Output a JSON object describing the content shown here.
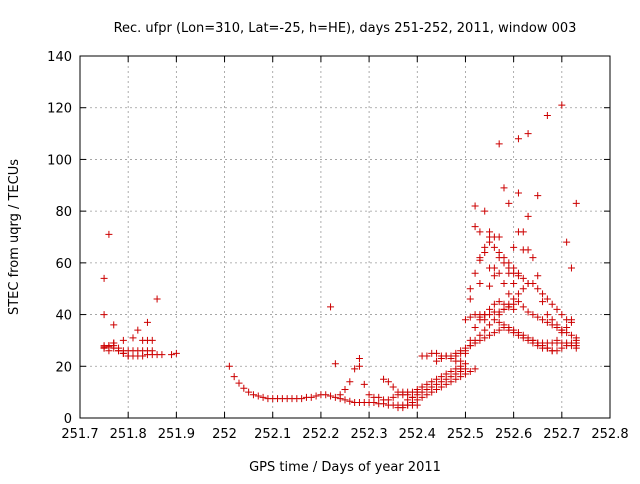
{
  "chart_data": {
    "type": "scatter",
    "title": "Rec. ufpr (Lon=310, Lat=-25, h=HE), days 251-252, 2011, window 003",
    "xlabel": "GPS time / Days of year 2011",
    "ylabel": "STEC from uqrg / TECUs",
    "xlim": [
      251.7,
      252.8
    ],
    "ylim": [
      0,
      140
    ],
    "xticks": [
      251.7,
      251.8,
      251.9,
      252.0,
      252.1,
      252.2,
      252.3,
      252.4,
      252.5,
      252.6,
      252.7,
      252.8
    ],
    "xtick_labels": [
      "251.7",
      "251.8",
      "251.9",
      "252",
      "252.1",
      "252.2",
      "252.3",
      "252.4",
      "252.5",
      "252.6",
      "252.7",
      "252.8"
    ],
    "yticks": [
      0,
      20,
      40,
      60,
      80,
      100,
      120,
      140
    ],
    "ytick_labels": [
      "0",
      "20",
      "40",
      "60",
      "80",
      "100",
      "120",
      "140"
    ],
    "grid": true,
    "marker": "+",
    "marker_color": "#cc0000",
    "x": [
      251.75,
      251.75,
      251.75,
      251.76,
      251.76,
      251.76,
      251.77,
      251.77,
      251.78,
      251.78,
      251.79,
      251.79,
      251.8,
      251.8,
      251.81,
      251.82,
      251.83,
      251.84,
      251.85,
      251.86,
      251.87,
      251.89,
      251.9,
      251.76,
      251.77,
      251.78,
      251.79,
      251.8,
      251.81,
      251.82,
      251.83,
      251.84,
      251.85,
      251.75,
      251.77,
      251.79,
      251.81,
      251.83,
      251.84,
      251.85,
      251.75,
      251.75,
      251.76,
      251.77,
      251.82,
      251.84,
      251.86,
      252.01,
      252.02,
      252.03,
      252.04,
      252.05,
      252.06,
      252.07,
      252.08,
      252.09,
      252.1,
      252.11,
      252.12,
      252.13,
      252.14,
      252.15,
      252.16,
      252.17,
      252.18,
      252.19,
      252.2,
      252.21,
      252.22,
      252.23,
      252.24,
      252.25,
      252.26,
      252.27,
      252.28,
      252.29,
      252.3,
      252.31,
      252.32,
      252.33,
      252.34,
      252.35,
      252.36,
      252.37,
      252.38,
      252.39,
      252.4,
      252.22,
      252.23,
      252.24,
      252.25,
      252.26,
      252.27,
      252.28,
      252.28,
      252.29,
      252.3,
      252.31,
      252.32,
      252.33,
      252.34,
      252.35,
      252.36,
      252.37,
      252.38,
      252.39,
      252.4,
      252.41,
      252.33,
      252.34,
      252.35,
      252.36,
      252.37,
      252.38,
      252.39,
      252.4,
      252.41,
      252.42,
      252.43,
      252.44,
      252.45,
      252.46,
      252.47,
      252.48,
      252.49,
      252.5,
      252.36,
      252.37,
      252.38,
      252.39,
      252.4,
      252.41,
      252.42,
      252.43,
      252.44,
      252.45,
      252.46,
      252.47,
      252.48,
      252.49,
      252.5,
      252.51,
      252.52,
      252.38,
      252.39,
      252.4,
      252.41,
      252.42,
      252.43,
      252.44,
      252.45,
      252.46,
      252.47,
      252.48,
      252.49,
      252.5,
      252.41,
      252.42,
      252.43,
      252.44,
      252.45,
      252.46,
      252.47,
      252.48,
      252.49,
      252.44,
      252.45,
      252.46,
      252.47,
      252.48,
      252.49,
      252.5,
      252.51,
      252.52,
      252.53,
      252.54,
      252.55,
      252.56,
      252.57,
      252.58,
      252.59,
      252.6,
      252.61,
      252.62,
      252.63,
      252.64,
      252.65,
      252.66,
      252.67,
      252.68,
      252.69,
      252.7,
      252.71,
      252.72,
      252.73,
      252.5,
      252.51,
      252.52,
      252.53,
      252.54,
      252.55,
      252.56,
      252.57,
      252.58,
      252.59,
      252.6,
      252.61,
      252.62,
      252.63,
      252.64,
      252.65,
      252.66,
      252.67,
      252.68,
      252.69,
      252.7,
      252.71,
      252.72,
      252.73,
      252.49,
      252.5,
      252.51,
      252.52,
      252.53,
      252.54,
      252.55,
      252.56,
      252.57,
      252.58,
      252.59,
      252.6,
      252.51,
      252.52,
      252.53,
      252.54,
      252.55,
      252.56,
      252.57,
      252.58,
      252.59,
      252.6,
      252.61,
      252.52,
      252.53,
      252.54,
      252.55,
      252.56,
      252.57,
      252.58,
      252.59,
      252.6,
      252.61,
      252.62,
      252.63,
      252.55,
      252.56,
      252.57,
      252.58,
      252.59,
      252.6,
      252.61,
      252.62,
      252.63,
      252.64,
      252.65,
      252.66,
      252.67,
      252.68,
      252.69,
      252.7,
      252.51,
      252.53,
      252.54,
      252.55,
      252.56,
      252.57,
      252.58,
      252.59,
      252.6,
      252.61,
      252.62,
      252.63,
      252.64,
      252.65,
      252.66,
      252.67,
      252.68,
      252.69,
      252.7,
      252.71,
      252.72,
      252.73,
      252.48,
      252.49,
      252.5,
      252.51,
      252.52,
      252.53,
      252.54,
      252.55,
      252.56,
      252.57,
      252.58,
      252.59,
      252.6,
      252.61,
      252.62,
      252.63,
      252.64,
      252.65,
      252.66,
      252.67,
      252.68,
      252.69,
      252.7,
      252.71,
      252.72,
      252.73,
      252.53,
      252.54,
      252.57,
      252.58,
      252.59,
      252.6,
      252.61,
      252.62,
      252.63,
      252.64,
      252.65,
      252.66,
      252.67,
      252.68,
      252.69,
      252.7,
      252.71,
      252.72,
      252.73,
      252.52,
      252.53,
      252.55,
      252.57,
      252.59,
      252.61,
      252.63,
      252.65,
      252.67,
      252.7,
      252.71,
      252.72,
      252.73
    ],
    "y": [
      27,
      27,
      27.5,
      28,
      27.5,
      28,
      29,
      28,
      27,
      26,
      25,
      25,
      24,
      24,
      24,
      24,
      24,
      24.5,
      24.5,
      24.5,
      24.5,
      24.5,
      25,
      26,
      27,
      26,
      26,
      26,
      26,
      26,
      26,
      26,
      26,
      28,
      29,
      30,
      31,
      30,
      30,
      30,
      40,
      54,
      71,
      36,
      34,
      37,
      46,
      20,
      16,
      13.5,
      11.5,
      10,
      9,
      8.5,
      8,
      7.5,
      7.5,
      7.5,
      7.5,
      7.5,
      7.5,
      7.5,
      7.5,
      8,
      8,
      8.5,
      9,
      9,
      8.5,
      8,
      7.5,
      7,
      6.5,
      6,
      6,
      6,
      6,
      6,
      5.5,
      5.5,
      5,
      5,
      5,
      5,
      5,
      5,
      5,
      43,
      21,
      9,
      11,
      14,
      19,
      20,
      23,
      13,
      9,
      8,
      8,
      7,
      7,
      8,
      9,
      10,
      10,
      10,
      11,
      12,
      15,
      14,
      12,
      10,
      9,
      9,
      8,
      10,
      12,
      13,
      14,
      15,
      16,
      17,
      18,
      19,
      20,
      21,
      4,
      4,
      5,
      6,
      7,
      8,
      9,
      10,
      11,
      12,
      13,
      14,
      15,
      16,
      17,
      18,
      19,
      7,
      8,
      9,
      10,
      11,
      12,
      13,
      14,
      15,
      16,
      17,
      18,
      19,
      24,
      24,
      25,
      25,
      24,
      24,
      23,
      22,
      22,
      22,
      23,
      24,
      24,
      25,
      26,
      27,
      28,
      29,
      30,
      31,
      32,
      33,
      34,
      35,
      34,
      33,
      32,
      31,
      30,
      29,
      29,
      29,
      29,
      29,
      29,
      29,
      29,
      29,
      29,
      38,
      39,
      40,
      40,
      40,
      40,
      41,
      41,
      42,
      43,
      44,
      45,
      43,
      41,
      40,
      39,
      38,
      37,
      36,
      35,
      34,
      33,
      32,
      31,
      19,
      25,
      30,
      35,
      38,
      40,
      42,
      44,
      45,
      44,
      43,
      42,
      50,
      56,
      62,
      66,
      68,
      66,
      62,
      60,
      58,
      56,
      55,
      82,
      72,
      80,
      72,
      70,
      64,
      62,
      60,
      58,
      56,
      54,
      52,
      58,
      55,
      106,
      89,
      83,
      66,
      87,
      72,
      65,
      62,
      55,
      45,
      40,
      38,
      36,
      34,
      46,
      52,
      64,
      70,
      58,
      56,
      52,
      48,
      52,
      72,
      65,
      78,
      30,
      28,
      27,
      27,
      26,
      26,
      27,
      28,
      28,
      27,
      24,
      25,
      26,
      28,
      30,
      32,
      34,
      36,
      38,
      40,
      42,
      44,
      46,
      48,
      50,
      52,
      52,
      50,
      48,
      46,
      44,
      42,
      40,
      38,
      37,
      30,
      39,
      38,
      37,
      36,
      35,
      34,
      33,
      32,
      31,
      30,
      29,
      28,
      27,
      26,
      30,
      33,
      35,
      38,
      28,
      74,
      61,
      51,
      70,
      56,
      108,
      110,
      86,
      117,
      121,
      68,
      58,
      83
    ]
  }
}
